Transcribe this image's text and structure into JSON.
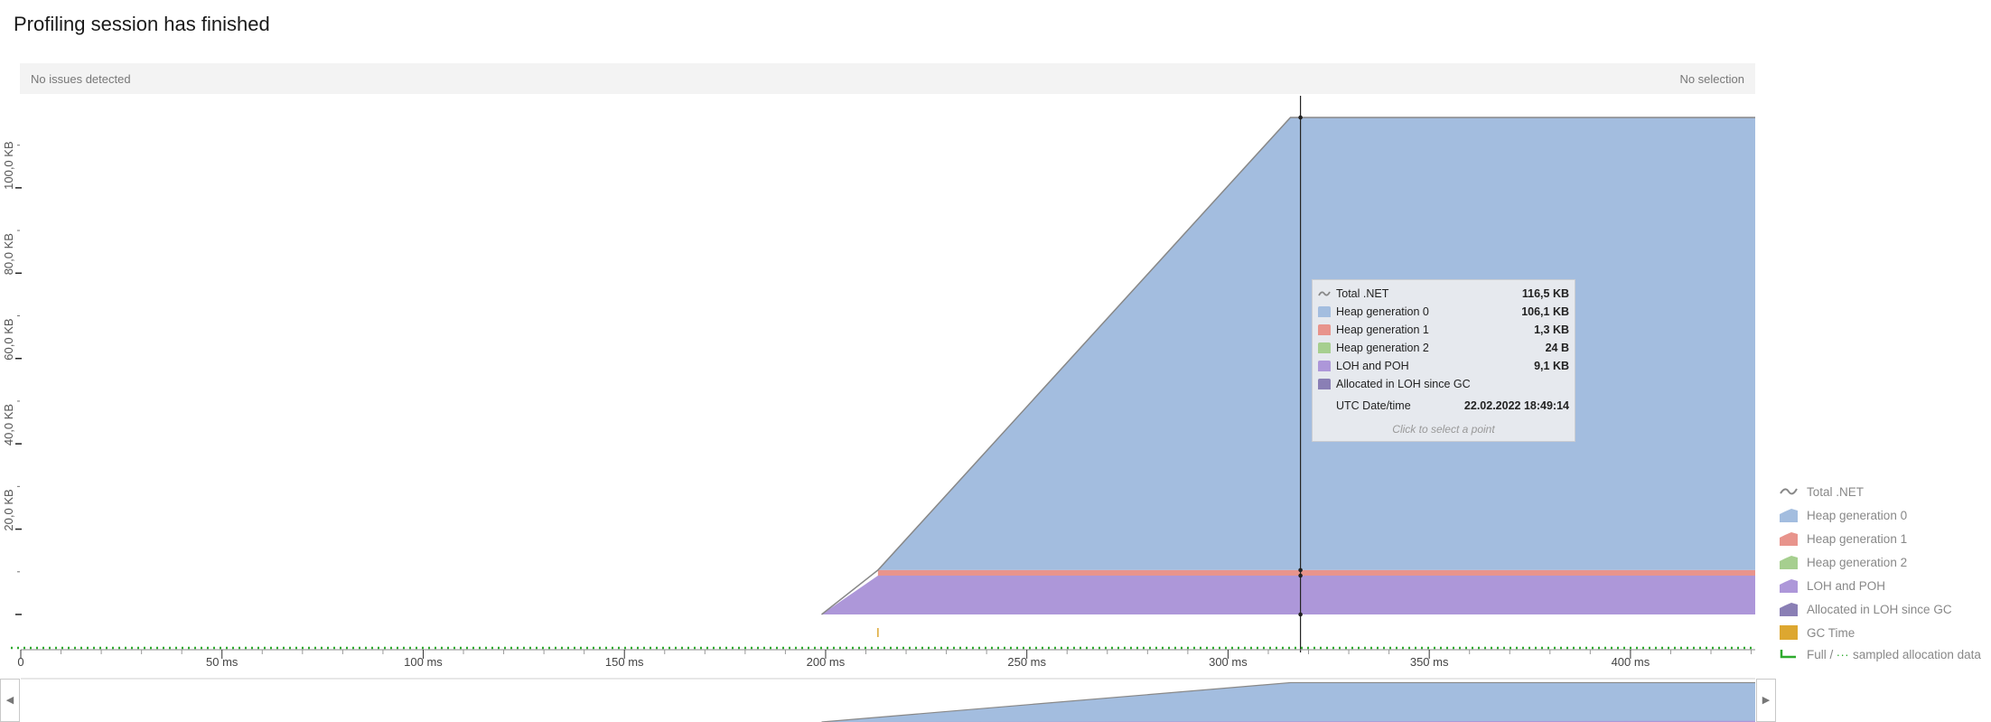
{
  "header": {
    "title": "Profiling session has finished"
  },
  "infobar": {
    "issues": "No issues detected",
    "selection": "No selection"
  },
  "colors": {
    "total": "#888888",
    "heap0": "#a3bddf",
    "heap1": "#e8948c",
    "heap2": "#a6cf8f",
    "loh": "#ad97d9",
    "loh_alloc": "#8a7fb5",
    "gc": "#dda730",
    "sampled": "#2eab2e",
    "cursor": "#222222"
  },
  "chart_data": {
    "type": "area",
    "x_unit": "ms",
    "xlim": [
      0,
      431
    ],
    "ylim": [
      0,
      122
    ],
    "x_ticks": [
      0,
      50,
      100,
      150,
      200,
      250,
      300,
      350,
      400
    ],
    "x_tick_labels": [
      "0",
      "50 ms",
      "100 ms",
      "150 ms",
      "200 ms",
      "250 ms",
      "300 ms",
      "350 ms",
      "400 ms"
    ],
    "y_ticks": [
      0,
      20,
      40,
      60,
      80,
      100
    ],
    "y_tick_labels": [
      "",
      "20,0 KB",
      "40,0 KB",
      "60,0 KB",
      "80,0 KB",
      "100,0 KB"
    ],
    "series": [
      {
        "name": "Total .NET",
        "key": "total",
        "points": [
          [
            199,
            0
          ],
          [
            213,
            10.4
          ],
          [
            315.5,
            116.5
          ],
          [
            431,
            116.5
          ]
        ]
      },
      {
        "name": "Heap generation 0",
        "key": "heap0",
        "points": [
          [
            213,
            10.4
          ],
          [
            315.5,
            116.5
          ],
          [
            431,
            116.5
          ]
        ]
      },
      {
        "name": "Heap generation 1",
        "key": "heap1",
        "points": [
          [
            213,
            9.1
          ],
          [
            431,
            9.1
          ]
        ]
      },
      {
        "name": "Heap generation 2",
        "key": "heap2",
        "points": []
      },
      {
        "name": "LOH and POH",
        "key": "loh",
        "points": [
          [
            199,
            0
          ],
          [
            213,
            9.1
          ],
          [
            431,
            9.1
          ]
        ]
      },
      {
        "name": "Allocated in LOH since GC",
        "key": "loh_alloc",
        "points": []
      }
    ],
    "gc_events": [
      213
    ],
    "cursor_x": 318,
    "legend_position": "right",
    "legend": [
      "Total .NET",
      "Heap generation 0",
      "Heap generation 1",
      "Heap generation 2",
      "LOH and POH",
      "Allocated in LOH since GC",
      "GC Time",
      "Full / "
    ],
    "legend_extra": "sampled allocation data"
  },
  "tooltip": {
    "rows": [
      {
        "label": "Total .NET",
        "value": "116,5 KB",
        "key": "total"
      },
      {
        "label": "Heap generation 0",
        "value": "106,1 KB",
        "key": "heap0"
      },
      {
        "label": "Heap generation 1",
        "value": "1,3 KB",
        "key": "heap1"
      },
      {
        "label": "Heap generation 2",
        "value": "24 B",
        "key": "heap2"
      },
      {
        "label": "LOH and POH",
        "value": "9,1 KB",
        "key": "loh"
      },
      {
        "label": "Allocated in LOH since GC",
        "value": "",
        "key": "loh_alloc"
      }
    ],
    "datetime_label": "UTC Date/time",
    "datetime_value": "22.02.2022 18:49:14",
    "hint": "Click to select a point"
  },
  "navigator": {
    "left_icon": "arrow-left-icon",
    "right_icon": "arrow-right-icon"
  }
}
